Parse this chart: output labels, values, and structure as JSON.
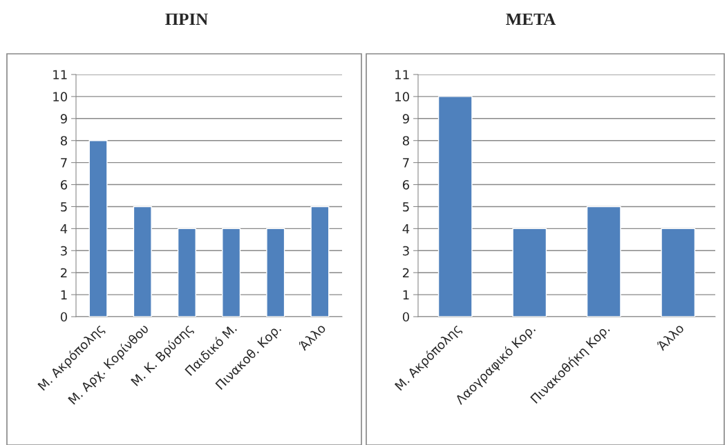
{
  "chart_data": [
    {
      "type": "bar",
      "title": "ΠΡΙΝ",
      "categories": [
        "Μ. Ακρόπολης",
        "Μ. Αρχ. Κορίνθου",
        "Μ. Κ. Βρύσης",
        "Παιδικό Μ.",
        "Πινακοθ. Κορ.",
        "Άλλο"
      ],
      "values": [
        8,
        5,
        4,
        4,
        4,
        5
      ],
      "color": "#4f81bd",
      "ylim": [
        0,
        11
      ],
      "yticks": [
        0,
        1,
        2,
        3,
        4,
        5,
        6,
        7,
        8,
        9,
        10,
        11
      ],
      "grid": "y",
      "legend": false
    },
    {
      "type": "bar",
      "title": "ΜΕΤΑ",
      "categories": [
        "Μ. Ακρόπολης",
        "Λαογραφικό Κορ.",
        "Πινακοθήκη Κορ.",
        "Άλλο"
      ],
      "values": [
        10,
        4,
        5,
        4
      ],
      "color": "#4f81bd",
      "ylim": [
        0,
        11
      ],
      "yticks": [
        0,
        1,
        2,
        3,
        4,
        5,
        6,
        7,
        8,
        9,
        10,
        11
      ],
      "grid": "y",
      "legend": false
    }
  ]
}
